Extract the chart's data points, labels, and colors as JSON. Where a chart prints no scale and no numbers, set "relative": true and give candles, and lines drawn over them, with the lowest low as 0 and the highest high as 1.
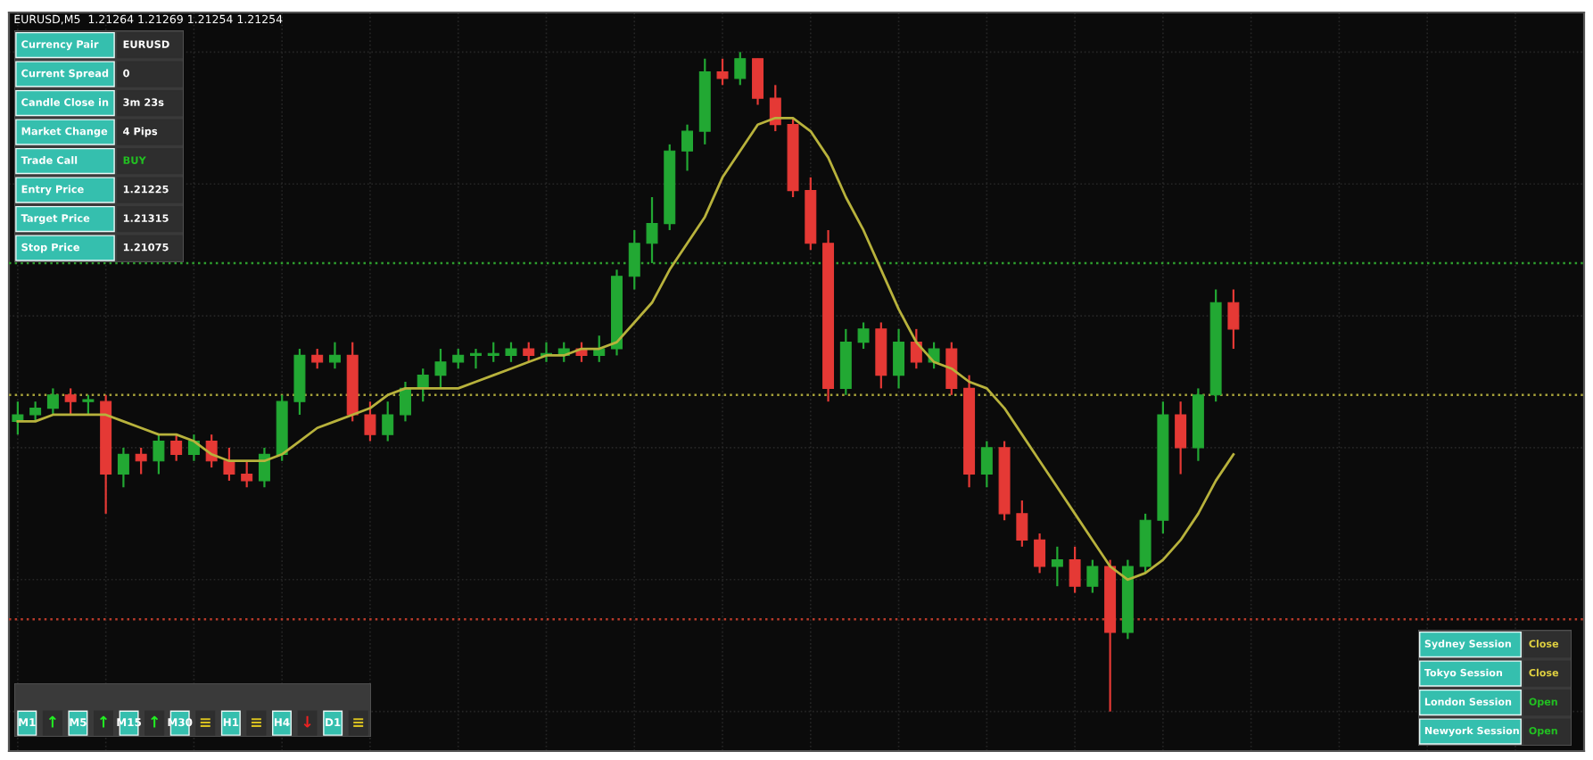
{
  "chart_data": [
    {
      "type": "candlestick",
      "title": "EURUSD,M5  1.21264 1.21269 1.21254 1.21254",
      "relative": true,
      "grid": true,
      "colors": [
        "#22a833",
        "#22a833",
        "#22a833",
        "#e53935",
        "#22a833",
        "#e53935",
        "#22a833",
        "#e53935",
        "#22a833",
        "#e53935",
        "#22a833",
        "#e53935",
        "#e53935",
        "#e53935",
        "#22a833",
        "#22a833",
        "#22a833",
        "#e53935",
        "#22a833",
        "#e53935",
        "#e53935",
        "#22a833",
        "#22a833",
        "#22a833",
        "#22a833",
        "#22a833",
        "#22a833",
        "#22a833",
        "#22a833",
        "#e53935",
        "#22a833",
        "#22a833",
        "#e53935",
        "#22a833",
        "#22a833",
        "#22a833",
        "#22a833",
        "#22a833",
        "#22a833",
        "#22a833",
        "#e53935",
        "#22a833",
        "#e53935",
        "#e53935",
        "#e53935",
        "#e53935",
        "#e53935",
        "#22a833",
        "#22a833",
        "#e53935",
        "#22a833",
        "#e53935",
        "#22a833",
        "#e53935",
        "#e53935",
        "#22a833",
        "#e53935",
        "#e53935",
        "#e53935",
        "#22a833",
        "#e53935",
        "#22a833",
        "#e53935",
        "#22a833",
        "#22a833",
        "#22a833",
        "#e53935",
        "#22a833",
        "#22a833",
        "#e53935"
      ],
      "categories": [
        null,
        null,
        null,
        null,
        null,
        null,
        null,
        null,
        null,
        null,
        null,
        null,
        null,
        null,
        null,
        null,
        null,
        null,
        null,
        null,
        null,
        null,
        null,
        null,
        null,
        null,
        null,
        null,
        null,
        null,
        null,
        null,
        null,
        null,
        null,
        null,
        null,
        null,
        null,
        null,
        null,
        null,
        null,
        null,
        null,
        null,
        null,
        null,
        null,
        null,
        null,
        null,
        null,
        null,
        null,
        null,
        null,
        null,
        null,
        null,
        null,
        null,
        null,
        null,
        null,
        null,
        null,
        null,
        null,
        null
      ],
      "ohlc": [
        [
          0.44,
          0.47,
          0.42,
          0.45
        ],
        [
          0.45,
          0.47,
          0.44,
          0.46
        ],
        [
          0.46,
          0.49,
          0.45,
          0.48
        ],
        [
          0.48,
          0.49,
          0.45,
          0.47
        ],
        [
          0.47,
          0.48,
          0.45,
          0.47
        ],
        [
          0.47,
          0.48,
          0.3,
          0.36
        ],
        [
          0.36,
          0.4,
          0.34,
          0.39
        ],
        [
          0.39,
          0.4,
          0.36,
          0.38
        ],
        [
          0.38,
          0.42,
          0.36,
          0.41
        ],
        [
          0.41,
          0.42,
          0.38,
          0.39
        ],
        [
          0.39,
          0.42,
          0.38,
          0.41
        ],
        [
          0.41,
          0.42,
          0.37,
          0.38
        ],
        [
          0.38,
          0.4,
          0.35,
          0.36
        ],
        [
          0.36,
          0.38,
          0.34,
          0.35
        ],
        [
          0.35,
          0.4,
          0.34,
          0.39
        ],
        [
          0.39,
          0.48,
          0.38,
          0.47
        ],
        [
          0.47,
          0.55,
          0.45,
          0.54
        ],
        [
          0.54,
          0.55,
          0.52,
          0.53
        ],
        [
          0.53,
          0.56,
          0.52,
          0.54
        ],
        [
          0.54,
          0.56,
          0.44,
          0.45
        ],
        [
          0.45,
          0.47,
          0.41,
          0.42
        ],
        [
          0.42,
          0.47,
          0.41,
          0.45
        ],
        [
          0.45,
          0.5,
          0.44,
          0.49
        ],
        [
          0.49,
          0.52,
          0.47,
          0.51
        ],
        [
          0.51,
          0.55,
          0.49,
          0.53
        ],
        [
          0.53,
          0.55,
          0.52,
          0.54
        ],
        [
          0.54,
          0.55,
          0.52,
          0.54
        ],
        [
          0.54,
          0.56,
          0.53,
          0.54
        ],
        [
          0.54,
          0.56,
          0.53,
          0.55
        ],
        [
          0.55,
          0.56,
          0.53,
          0.54
        ],
        [
          0.54,
          0.56,
          0.53,
          0.54
        ],
        [
          0.54,
          0.56,
          0.53,
          0.55
        ],
        [
          0.55,
          0.56,
          0.53,
          0.54
        ],
        [
          0.54,
          0.57,
          0.53,
          0.55
        ],
        [
          0.55,
          0.67,
          0.54,
          0.66
        ],
        [
          0.66,
          0.73,
          0.64,
          0.71
        ],
        [
          0.71,
          0.78,
          0.68,
          0.74
        ],
        [
          0.74,
          0.86,
          0.73,
          0.85
        ],
        [
          0.85,
          0.89,
          0.82,
          0.88
        ],
        [
          0.88,
          0.99,
          0.86,
          0.97
        ],
        [
          0.97,
          0.99,
          0.95,
          0.96
        ],
        [
          0.96,
          1.0,
          0.95,
          0.99
        ],
        [
          0.99,
          0.99,
          0.92,
          0.93
        ],
        [
          0.93,
          0.95,
          0.88,
          0.89
        ],
        [
          0.89,
          0.9,
          0.78,
          0.79
        ],
        [
          0.79,
          0.81,
          0.7,
          0.71
        ],
        [
          0.71,
          0.73,
          0.47,
          0.49
        ],
        [
          0.49,
          0.58,
          0.48,
          0.56
        ],
        [
          0.56,
          0.59,
          0.55,
          0.58
        ],
        [
          0.58,
          0.59,
          0.49,
          0.51
        ],
        [
          0.51,
          0.58,
          0.49,
          0.56
        ],
        [
          0.56,
          0.58,
          0.52,
          0.53
        ],
        [
          0.53,
          0.56,
          0.52,
          0.55
        ],
        [
          0.55,
          0.56,
          0.48,
          0.49
        ],
        [
          0.49,
          0.51,
          0.34,
          0.36
        ],
        [
          0.36,
          0.41,
          0.34,
          0.4
        ],
        [
          0.4,
          0.41,
          0.29,
          0.3
        ],
        [
          0.3,
          0.32,
          0.25,
          0.26
        ],
        [
          0.26,
          0.27,
          0.21,
          0.22
        ],
        [
          0.22,
          0.25,
          0.19,
          0.23
        ],
        [
          0.23,
          0.25,
          0.18,
          0.19
        ],
        [
          0.19,
          0.23,
          0.18,
          0.22
        ],
        [
          0.22,
          0.23,
          0.0,
          0.12
        ],
        [
          0.12,
          0.23,
          0.11,
          0.22
        ],
        [
          0.22,
          0.3,
          0.21,
          0.29
        ],
        [
          0.29,
          0.47,
          0.27,
          0.45
        ],
        [
          0.45,
          0.47,
          0.36,
          0.4
        ],
        [
          0.4,
          0.49,
          0.38,
          0.48
        ],
        [
          0.48,
          0.64,
          0.47,
          0.62
        ],
        [
          0.62,
          0.64,
          0.55,
          0.58
        ]
      ],
      "series": [
        {
          "type": "line",
          "color": "#b8b23c",
          "values": [
            0.44,
            0.44,
            0.45,
            0.45,
            0.45,
            0.45,
            0.44,
            0.43,
            0.42,
            0.42,
            0.41,
            0.39,
            0.38,
            0.38,
            0.38,
            0.39,
            0.41,
            0.43,
            0.44,
            0.45,
            0.46,
            0.48,
            0.49,
            0.49,
            0.49,
            0.49,
            0.5,
            0.51,
            0.52,
            0.53,
            0.54,
            0.54,
            0.55,
            0.55,
            0.56,
            0.59,
            0.62,
            0.67,
            0.71,
            0.75,
            0.81,
            0.85,
            0.89,
            0.9,
            0.9,
            0.88,
            0.84,
            0.78,
            0.73,
            0.67,
            0.61,
            0.56,
            0.53,
            0.52,
            0.5,
            0.49,
            0.46,
            0.42,
            0.38,
            0.34,
            0.3,
            0.26,
            0.22,
            0.2,
            0.21,
            0.23,
            0.26,
            0.3,
            0.35,
            0.39
          ]
        }
      ],
      "ref_lines": [
        {
          "axis": "y",
          "value": 0.68,
          "color": "#2e9e2e",
          "line_style": "dotted"
        },
        {
          "axis": "y",
          "value": 0.48,
          "color": "#a7a23a",
          "line_style": "dotted"
        },
        {
          "axis": "y",
          "value": 0.14,
          "color": "#b83a2a",
          "line_style": "dotted"
        }
      ]
    },
    {
      "type": "other",
      "annotations": [
        "Currency Pair",
        "EURUSD",
        "Current Spread",
        "0",
        "Candle Close in",
        "3m 23s",
        "Market Change",
        "4 Pips",
        "Trade Call",
        "BUY",
        "Entry Price",
        "1.21225",
        "Target Price",
        "1.21315",
        "Stop Price",
        "1.21075"
      ],
      "colors": [
        "#ffffff",
        "#ffffff",
        "#ffffff",
        "#ffffff",
        "#ffffff",
        "#ffffff",
        "#ffffff",
        "#ffffff",
        "#ffffff",
        "#22c022",
        "#ffffff",
        "#ffffff",
        "#ffffff",
        "#ffffff",
        "#ffffff",
        "#ffffff"
      ]
    },
    {
      "type": "other",
      "annotations": [
        "M1",
        "↑",
        "M5",
        "↑",
        "M15",
        "↑",
        "M30",
        "≡",
        "H1",
        "≡",
        "H4",
        "↓",
        "D1",
        "≡"
      ],
      "colors": [
        "#ffffff",
        "#22ee22",
        "#ffffff",
        "#22ee22",
        "#ffffff",
        "#22ee22",
        "#ffffff",
        "#d8c020",
        "#ffffff",
        "#d8c020",
        "#ffffff",
        "#ee2222",
        "#ffffff",
        "#d8c020"
      ]
    },
    {
      "type": "other",
      "annotations": [
        "Sydney Session",
        "Close",
        "Tokyo Session",
        "Close",
        "London Session",
        "Open",
        "Newyork Session",
        "Open"
      ],
      "colors": [
        "#ffffff",
        "#e0d040",
        "#ffffff",
        "#e0d040",
        "#ffffff",
        "#22c022",
        "#ffffff",
        "#22c022"
      ]
    }
  ]
}
